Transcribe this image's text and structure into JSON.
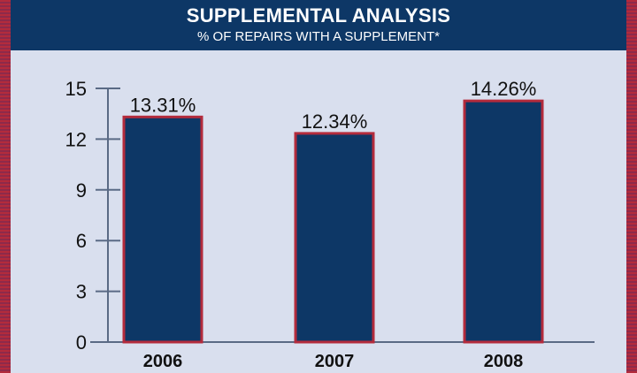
{
  "header": {
    "title": "SUPPLEMENTAL ANALYSIS",
    "subtitle": "% OF REPAIRS WITH A SUPPLEMENT*"
  },
  "colors": {
    "header_bg": "#0d3766",
    "panel_bg": "#d9dfee",
    "bar_fill": "#0d3766",
    "bar_stroke": "#b32b3c"
  },
  "chart_data": {
    "type": "bar",
    "title": "SUPPLEMENTAL ANALYSIS",
    "subtitle": "% OF REPAIRS WITH A SUPPLEMENT*",
    "categories": [
      "2006",
      "2007",
      "2008"
    ],
    "values": [
      13.31,
      12.34,
      14.26
    ],
    "data_labels": [
      "13.31%",
      "12.34%",
      "14.26%"
    ],
    "y_ticks": [
      "0",
      "3",
      "6",
      "9",
      "12",
      "15"
    ],
    "ylim": [
      0,
      15
    ],
    "grid": false,
    "legend": "none"
  }
}
